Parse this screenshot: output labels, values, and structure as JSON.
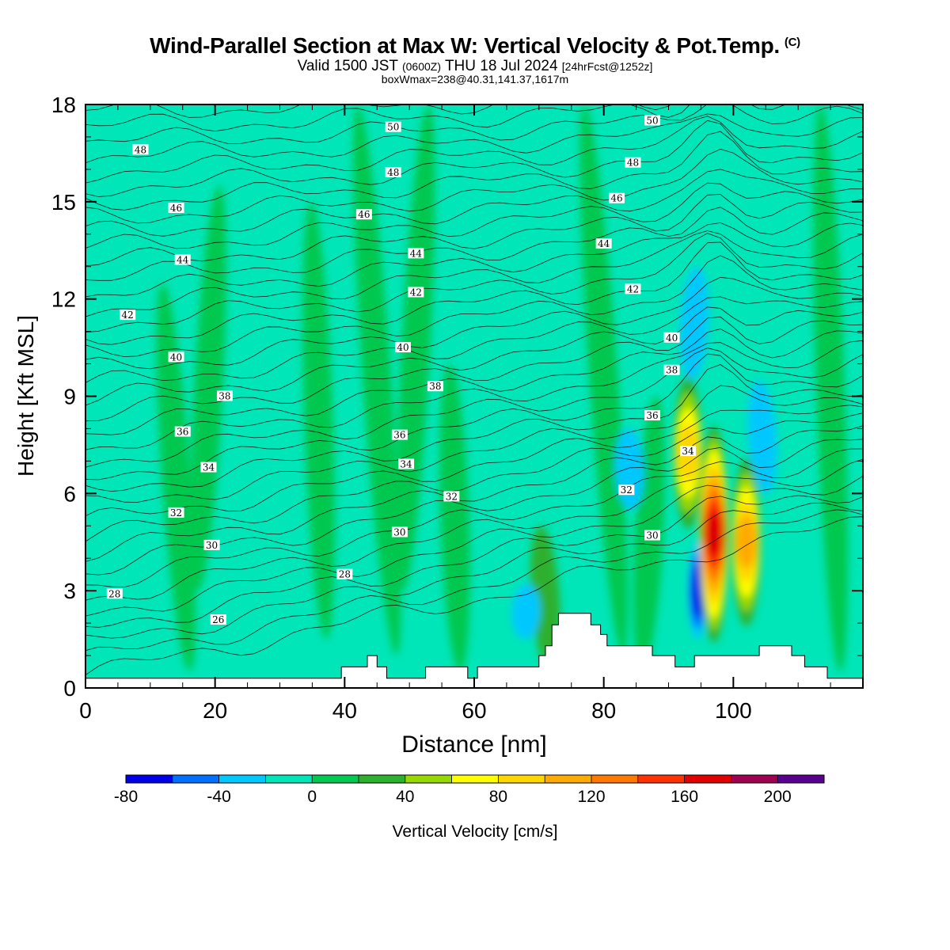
{
  "header": {
    "title": "Wind-Parallel Section at Max W: Vertical Velocity & Pot.Temp.",
    "title_mark": "(C)",
    "valid_prefix": "Valid 1500 JST",
    "valid_utc": "(0600Z)",
    "valid_date": "THU 18 Jul 2024",
    "forecast": "[24hrFcst@1252z]",
    "box_info": "boxWmax=238@40.31,141.37,1617m"
  },
  "chart_data": {
    "type": "heatmap",
    "xlabel": "Distance [nm]",
    "ylabel": "Height [Kft MSL]",
    "xlim": [
      0,
      120
    ],
    "ylim": [
      0,
      18
    ],
    "x_ticks": [
      "0",
      "20",
      "40",
      "60",
      "80",
      "100"
    ],
    "y_ticks": [
      "0",
      "3",
      "6",
      "9",
      "12",
      "15",
      "18"
    ],
    "colorbar": {
      "label": "Vertical Velocity [cm/s]",
      "ticks": [
        "-80",
        "-40",
        "0",
        "40",
        "80",
        "120",
        "160",
        "200"
      ],
      "levels": [
        -80,
        -60,
        -40,
        -20,
        0,
        20,
        40,
        60,
        80,
        100,
        120,
        140,
        160,
        180,
        200,
        220
      ],
      "colors": [
        "#0000e8",
        "#0070ff",
        "#00c8ff",
        "#00e6b8",
        "#00c850",
        "#2db02d",
        "#96d800",
        "#ffff00",
        "#ffd700",
        "#ffaa00",
        "#ff7800",
        "#ff3200",
        "#e00000",
        "#a00050",
        "#5a0090"
      ]
    },
    "background_velocity_cms": -10,
    "updraft_bands_cms": [
      {
        "x": 14,
        "y_range": [
          0.5,
          12.5
        ],
        "value": 10
      },
      {
        "x": 19,
        "y_range": [
          3,
          15.5
        ],
        "value": 10
      },
      {
        "x": 36,
        "y_range": [
          1.5,
          15
        ],
        "value": 10
      },
      {
        "x": 45,
        "y_range": [
          1,
          18
        ],
        "value": 10
      },
      {
        "x": 51,
        "y_range": [
          3,
          18
        ],
        "value": 10
      },
      {
        "x": 57,
        "y_range": [
          0.5,
          10
        ],
        "value": 10
      },
      {
        "x": 71,
        "y_range": [
          0.5,
          5
        ],
        "value": 30
      },
      {
        "x": 80,
        "y_range": [
          1,
          18
        ],
        "value": 10
      },
      {
        "x": 87,
        "y_range": [
          0.5,
          9
        ],
        "value": 10
      },
      {
        "x": 93,
        "y_range": [
          5,
          9.5
        ],
        "value": 80
      },
      {
        "x": 97,
        "y_range": [
          1.5,
          8
        ],
        "value": 170
      },
      {
        "x": 102,
        "y_range": [
          2,
          7
        ],
        "value": 100
      },
      {
        "x": 115,
        "y_range": [
          0.5,
          18
        ],
        "value": 10
      }
    ],
    "downdraft_bands_cms": [
      {
        "x": 68,
        "y_range": [
          1.5,
          3.2
        ],
        "value": -30
      },
      {
        "x": 84,
        "y_range": [
          5.5,
          8
        ],
        "value": -30
      },
      {
        "x": 94.5,
        "y_range": [
          1.5,
          4.5
        ],
        "value": -80
      },
      {
        "x": 94,
        "y_range": [
          9.5,
          13
        ],
        "value": -40
      },
      {
        "x": 104.5,
        "y_range": [
          6,
          9.5
        ],
        "value": -30
      }
    ],
    "contour_field": "Potential Temperature",
    "theta_labels": [
      {
        "value": "48",
        "x": 8.5,
        "y": 16.6
      },
      {
        "value": "50",
        "x": 47.5,
        "y": 17.3
      },
      {
        "value": "50",
        "x": 87.5,
        "y": 17.5
      },
      {
        "value": "48",
        "x": 47.5,
        "y": 15.9
      },
      {
        "value": "48",
        "x": 84.5,
        "y": 16.2
      },
      {
        "value": "46",
        "x": 14,
        "y": 14.8
      },
      {
        "value": "46",
        "x": 43,
        "y": 14.6
      },
      {
        "value": "46",
        "x": 82,
        "y": 15.1
      },
      {
        "value": "44",
        "x": 15,
        "y": 13.2
      },
      {
        "value": "44",
        "x": 51,
        "y": 13.4
      },
      {
        "value": "44",
        "x": 80,
        "y": 13.7
      },
      {
        "value": "42",
        "x": 6.5,
        "y": 11.5
      },
      {
        "value": "42",
        "x": 51,
        "y": 12.2
      },
      {
        "value": "42",
        "x": 84.5,
        "y": 12.3
      },
      {
        "value": "40",
        "x": 14,
        "y": 10.2
      },
      {
        "value": "40",
        "x": 49,
        "y": 10.5
      },
      {
        "value": "40",
        "x": 90.5,
        "y": 10.8
      },
      {
        "value": "38",
        "x": 21.5,
        "y": 9
      },
      {
        "value": "38",
        "x": 54,
        "y": 9.3
      },
      {
        "value": "38",
        "x": 90.5,
        "y": 9.8
      },
      {
        "value": "36",
        "x": 15,
        "y": 7.9
      },
      {
        "value": "36",
        "x": 48.5,
        "y": 7.8
      },
      {
        "value": "36",
        "x": 87.5,
        "y": 8.4
      },
      {
        "value": "34",
        "x": 19,
        "y": 6.8
      },
      {
        "value": "34",
        "x": 49.5,
        "y": 6.9
      },
      {
        "value": "34",
        "x": 93,
        "y": 7.3
      },
      {
        "value": "32",
        "x": 14,
        "y": 5.4
      },
      {
        "value": "32",
        "x": 56.5,
        "y": 5.9
      },
      {
        "value": "32",
        "x": 83.5,
        "y": 6.1
      },
      {
        "value": "30",
        "x": 19.5,
        "y": 4.4
      },
      {
        "value": "30",
        "x": 48.5,
        "y": 4.8
      },
      {
        "value": "30",
        "x": 87.5,
        "y": 4.7
      },
      {
        "value": "28",
        "x": 4.5,
        "y": 2.9
      },
      {
        "value": "28",
        "x": 40,
        "y": 3.5
      },
      {
        "value": "26",
        "x": 20.5,
        "y": 2.1
      }
    ],
    "terrain": [
      [
        0,
        0.3
      ],
      [
        39.5,
        0.3
      ],
      [
        39.5,
        0.65
      ],
      [
        43.5,
        0.65
      ],
      [
        43.5,
        1.0
      ],
      [
        45,
        1.0
      ],
      [
        45,
        0.65
      ],
      [
        46.5,
        0.65
      ],
      [
        46.5,
        0.3
      ],
      [
        52.5,
        0.3
      ],
      [
        52.5,
        0.65
      ],
      [
        59,
        0.65
      ],
      [
        59,
        0.3
      ],
      [
        60.5,
        0.3
      ],
      [
        60.5,
        0.65
      ],
      [
        70,
        0.65
      ],
      [
        70,
        1.0
      ],
      [
        71,
        1.0
      ],
      [
        71,
        1.3
      ],
      [
        72,
        1.3
      ],
      [
        72,
        1.95
      ],
      [
        73,
        1.95
      ],
      [
        73,
        2.3
      ],
      [
        78,
        2.3
      ],
      [
        78,
        1.95
      ],
      [
        79.5,
        1.95
      ],
      [
        79.5,
        1.65
      ],
      [
        80.5,
        1.65
      ],
      [
        80.5,
        1.3
      ],
      [
        87.5,
        1.3
      ],
      [
        87.5,
        1.0
      ],
      [
        91,
        1.0
      ],
      [
        91,
        0.65
      ],
      [
        94,
        0.65
      ],
      [
        94,
        1.0
      ],
      [
        104,
        1.0
      ],
      [
        104,
        1.3
      ],
      [
        109,
        1.3
      ],
      [
        109,
        1.0
      ],
      [
        111,
        1.0
      ],
      [
        111,
        0.65
      ],
      [
        114.5,
        0.65
      ],
      [
        114.5,
        0.3
      ],
      [
        120,
        0.3
      ]
    ]
  }
}
